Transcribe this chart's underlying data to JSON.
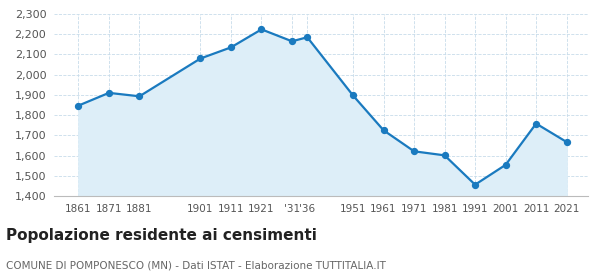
{
  "years": [
    1861,
    1871,
    1881,
    1901,
    1911,
    1921,
    1931,
    1936,
    1951,
    1961,
    1971,
    1981,
    1991,
    2001,
    2011,
    2021
  ],
  "population": [
    1847,
    1910,
    1893,
    2080,
    2135,
    2224,
    2165,
    2185,
    1897,
    1725,
    1621,
    1601,
    1456,
    1554,
    1758,
    1667
  ],
  "x_tick_positions": [
    1861,
    1871,
    1881,
    1901,
    1911,
    1921,
    1931,
    1936,
    1951,
    1961,
    1971,
    1981,
    1991,
    2001,
    2011,
    2021
  ],
  "x_tick_labels": [
    "1861",
    "1871",
    "1881",
    "1901",
    "1911",
    "1921",
    "'31",
    "'36",
    "1951",
    "1961",
    "1971",
    "1981",
    "1991",
    "2001",
    "2011",
    "2021"
  ],
  "title": "Popolazione residente ai censimenti",
  "subtitle": "COMUNE DI POMPONESCO (MN) - Dati ISTAT - Elaborazione TUTTITALIA.IT",
  "ylim": [
    1400,
    2300
  ],
  "yticks": [
    1400,
    1500,
    1600,
    1700,
    1800,
    1900,
    2000,
    2100,
    2200,
    2300
  ],
  "xlim_left": 1853,
  "xlim_right": 2028,
  "line_color": "#1a7abf",
  "fill_color": "#ddeef8",
  "marker_color": "#1a7abf",
  "bg_color": "#ffffff",
  "grid_color": "#c8dcea",
  "title_fontsize": 11,
  "subtitle_fontsize": 7.5,
  "tick_fontsize": 7.5,
  "ytick_fontsize": 8
}
